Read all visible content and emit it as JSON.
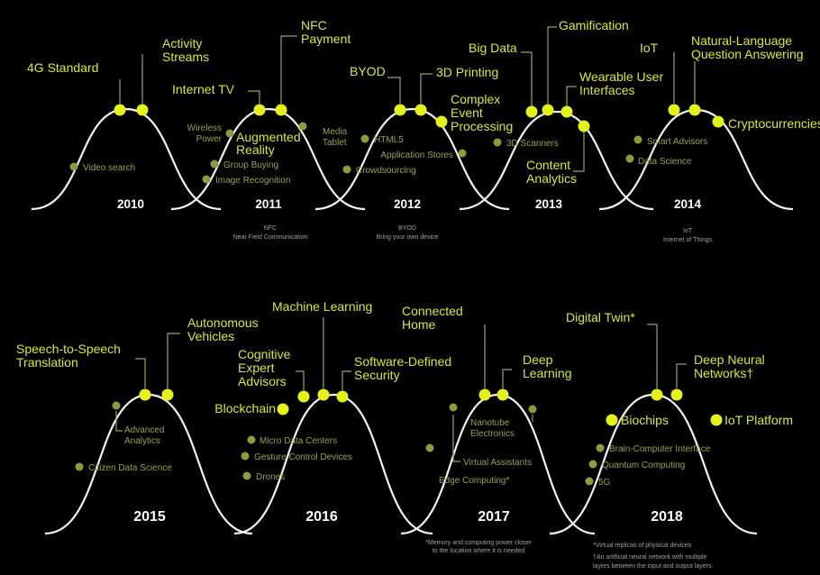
{
  "top_row": [
    {
      "year": "2010",
      "peak": [
        {
          "text": [
            "4G Standard"
          ]
        },
        {
          "text": [
            "Activity",
            "Streams"
          ]
        }
      ],
      "side": [
        {
          "text": [
            "Video search"
          ]
        }
      ]
    },
    {
      "year": "2011",
      "peak": [
        {
          "text": [
            "Internet TV"
          ]
        },
        {
          "text": [
            "NFC",
            "Payment"
          ]
        }
      ],
      "side": [
        {
          "text": [
            "Wireless",
            "Power"
          ]
        },
        {
          "text": [
            "Group Buying"
          ]
        },
        {
          "text": [
            "Image Recognition"
          ]
        },
        {
          "text": [
            "Media",
            "Tablet"
          ]
        }
      ],
      "middle": {
        "text": [
          "Augmented",
          "Reality"
        ]
      },
      "notes": [
        "NFC",
        "Near Field Communication"
      ]
    },
    {
      "year": "2012",
      "peak": [
        {
          "text": [
            "BYOD"
          ]
        },
        {
          "text": [
            "3D Printing"
          ]
        },
        {
          "text": [
            "Complex",
            "Event",
            "Processing"
          ]
        }
      ],
      "side": [
        {
          "text": [
            "HTML5"
          ]
        },
        {
          "text": [
            "Crowdsourcing"
          ]
        },
        {
          "text": [
            "Application Stores"
          ]
        }
      ],
      "notes": [
        "BYOD",
        "Bring your own device"
      ]
    },
    {
      "year": "2013",
      "peak": [
        {
          "text": [
            "Big Data"
          ]
        },
        {
          "text": [
            "Gamification"
          ]
        },
        {
          "text": [
            "Wearable User",
            "Interfaces"
          ]
        },
        {
          "text": [
            "Content",
            "Analytics"
          ]
        }
      ],
      "side": [
        {
          "text": [
            "3D Scanners"
          ]
        }
      ]
    },
    {
      "year": "2014",
      "peak": [
        {
          "text": [
            "IoT"
          ]
        },
        {
          "text": [
            "Natural-Language",
            "Question Answering"
          ]
        },
        {
          "text": [
            "Cryptocurrencies"
          ]
        }
      ],
      "side": [
        {
          "text": [
            "Smart Advisors"
          ]
        },
        {
          "text": [
            "Data Science"
          ]
        }
      ],
      "notes": [
        "IoT",
        "Internet of Things"
      ]
    }
  ],
  "bottom_row": [
    {
      "year": "2015",
      "peak": [
        {
          "text": [
            "Speech-to-Speech",
            "Translation"
          ]
        },
        {
          "text": [
            "Autonomous",
            "Vehicles"
          ]
        }
      ],
      "side": [
        {
          "text": [
            "Advanced",
            "Analytics"
          ]
        },
        {
          "text": [
            "Citizen Data Science"
          ]
        }
      ]
    },
    {
      "year": "2016",
      "peak": [
        {
          "text": [
            "Cognitive",
            "Expert",
            "Advisors"
          ]
        },
        {
          "text": [
            "Machine Learning"
          ]
        },
        {
          "text": [
            "Software-Defined",
            "Security"
          ]
        },
        {
          "text": [
            "Blockchain"
          ]
        }
      ],
      "side": [
        {
          "text": [
            "Micro Data Centers"
          ]
        },
        {
          "text": [
            "Gesture Control Devices"
          ]
        },
        {
          "text": [
            "Drones"
          ]
        }
      ]
    },
    {
      "year": "2017",
      "peak": [
        {
          "text": [
            "Connected",
            "Home"
          ]
        },
        {
          "text": [
            "Deep",
            "Learning"
          ]
        }
      ],
      "side": [
        {
          "text": [
            "Nanotube",
            "Electronics"
          ]
        },
        {
          "text": [
            "Virtual Assistants"
          ]
        },
        {
          "text": [
            "Edge Computing*"
          ]
        }
      ],
      "notes": [
        "*Memory and computing power closer",
        "to the location where it is needed"
      ]
    },
    {
      "year": "2018",
      "peak": [
        {
          "text": [
            "Digital Twin*"
          ]
        },
        {
          "text": [
            "Deep Neural",
            "Networks†"
          ]
        },
        {
          "text": [
            "Biochips"
          ]
        },
        {
          "text": [
            "IoT Platform"
          ]
        }
      ],
      "side": [
        {
          "text": [
            "Brain-Computer Interface"
          ]
        },
        {
          "text": [
            "Quantum Computing"
          ]
        },
        {
          "text": [
            "5G"
          ]
        }
      ],
      "notes": [
        "*Virtual replicas of physical devices",
        "",
        "†An artificial neural network with multiple",
        "layers between the input and output layers"
      ]
    }
  ]
}
